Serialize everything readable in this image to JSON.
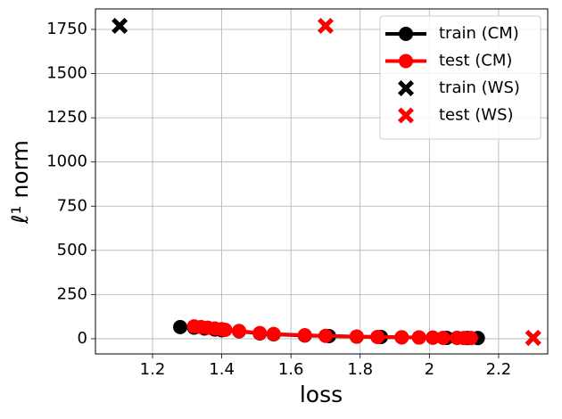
{
  "chart_data": {
    "type": "scatter-line",
    "xlabel": "loss",
    "ylabel": "ℓ¹ norm",
    "xlim": [
      1.035,
      2.342
    ],
    "ylim": [
      -86,
      1866
    ],
    "xticks": [
      1.2,
      1.4,
      1.6,
      1.8,
      2.0,
      2.2
    ],
    "yticks": [
      0,
      250,
      500,
      750,
      1000,
      1250,
      1500,
      1750
    ],
    "grid": true,
    "legend": "upper right",
    "series": [
      {
        "name": "train (CM)",
        "color": "#000000",
        "marker": "o",
        "line": true,
        "x": [
          1.28,
          1.32,
          1.35,
          1.38,
          1.4,
          1.45,
          1.51,
          1.55,
          1.64,
          1.71,
          1.79,
          1.86,
          1.92,
          1.97,
          2.01,
          2.05,
          2.08,
          2.11,
          2.14
        ],
        "values": [
          66,
          63,
          58,
          52,
          48,
          42,
          30,
          25,
          18,
          15,
          12,
          10,
          8,
          7,
          6,
          5,
          5,
          4,
          4
        ]
      },
      {
        "name": "test (CM)",
        "color": "#ff0000",
        "marker": "o",
        "line": true,
        "x": [
          1.32,
          1.34,
          1.36,
          1.38,
          1.4,
          1.41,
          1.45,
          1.51,
          1.55,
          1.64,
          1.7,
          1.79,
          1.85,
          1.92,
          1.97,
          2.01,
          2.04,
          2.08,
          2.1,
          2.12
        ],
        "values": [
          70,
          66,
          62,
          58,
          54,
          50,
          44,
          32,
          27,
          20,
          16,
          12,
          10,
          8,
          7,
          6,
          5,
          5,
          4,
          4
        ]
      },
      {
        "name": "train (WS)",
        "color": "#000000",
        "marker": "X",
        "line": false,
        "x": [
          1.105,
          2.3
        ],
        "values": [
          1770,
          5
        ]
      },
      {
        "name": "test (WS)",
        "color": "#ff0000",
        "marker": "X",
        "line": false,
        "x": [
          1.7,
          2.3
        ],
        "values": [
          1770,
          5
        ]
      }
    ]
  }
}
